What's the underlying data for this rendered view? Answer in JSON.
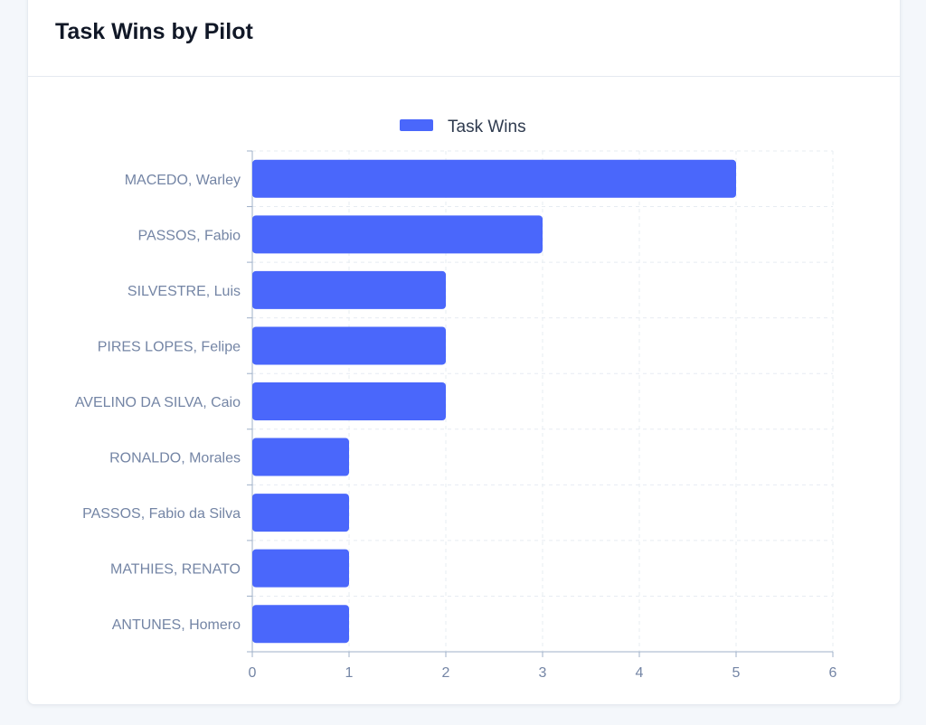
{
  "card": {
    "title": "Task Wins by Pilot"
  },
  "colors": {
    "bar": "#4a67fb",
    "label": "#7485a5",
    "grid": "#e7ecf2",
    "axis": "#9fb0c8",
    "legend_text": "#2f3b4f"
  },
  "chart_data": {
    "type": "bar",
    "orientation": "horizontal",
    "title": "Task Wins by Pilot",
    "legend_position": "top-center",
    "grid": true,
    "categories": [
      "MACEDO, Warley",
      "PASSOS, Fabio",
      "SILVESTRE, Luis",
      "PIRES LOPES, Felipe",
      "AVELINO DA SILVA, Caio",
      "RONALDO, Morales",
      "PASSOS, Fabio da Silva",
      "MATHIES, RENATO",
      "ANTUNES, Homero"
    ],
    "series": [
      {
        "name": "Task Wins",
        "values": [
          5,
          3,
          2,
          2,
          2,
          1,
          1,
          1,
          1
        ]
      }
    ],
    "xlim": [
      0,
      6
    ],
    "xticks": [
      "0",
      "1",
      "2",
      "3",
      "4",
      "5",
      "6"
    ],
    "xlabel": "",
    "ylabel": ""
  }
}
